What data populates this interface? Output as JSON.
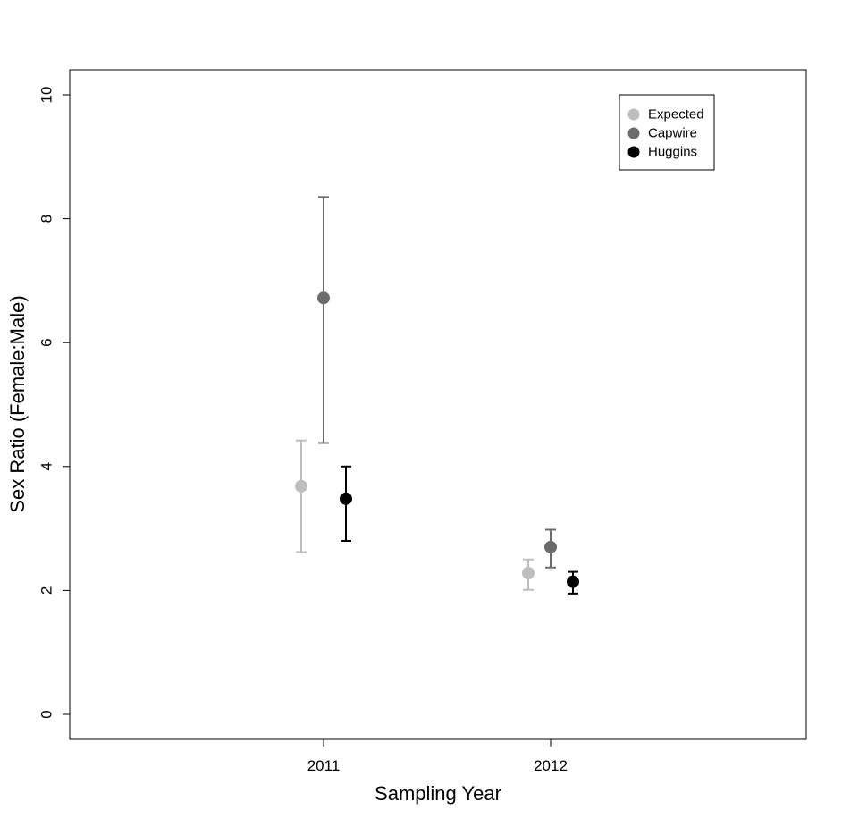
{
  "chart_data": {
    "type": "scatter",
    "title": "",
    "xlabel": "Sampling Year",
    "ylabel": "Sex Ratio (Female:Male)",
    "categories": [
      "2011",
      "2012"
    ],
    "ylim": [
      0,
      10
    ],
    "yticks": [
      0,
      2,
      4,
      6,
      8,
      10
    ],
    "grid": false,
    "legend": {
      "placement": "top-right"
    },
    "series": [
      {
        "name": "Expected",
        "color": "#bebebe",
        "values": [
          3.68,
          2.28
        ],
        "lower": [
          2.62,
          2.01
        ],
        "upper": [
          4.42,
          2.5
        ]
      },
      {
        "name": "Capwire",
        "color": "#6b6b6b",
        "values": [
          6.72,
          2.7
        ],
        "lower": [
          4.38,
          2.37
        ],
        "upper": [
          8.35,
          2.98
        ]
      },
      {
        "name": "Huggins",
        "color": "#000000",
        "values": [
          3.48,
          2.14
        ],
        "lower": [
          2.8,
          1.95
        ],
        "upper": [
          4.0,
          2.3
        ]
      }
    ]
  }
}
